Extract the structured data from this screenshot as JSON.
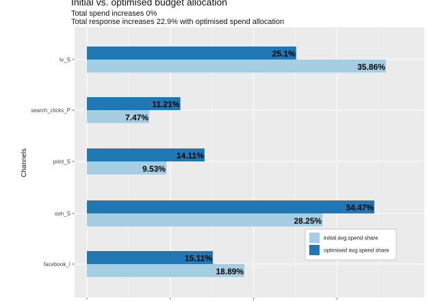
{
  "title": "Initial vs. optimised budget allocation",
  "subtitle_lines": [
    "Total spend increases 0%",
    "Total response increases 22.9% with optimised spend allocation"
  ],
  "chart_data": {
    "type": "bar",
    "orientation": "horizontal",
    "title": "Initial vs. optimised budget allocation",
    "ylabel": "Channels",
    "xlabel": "",
    "categories": [
      "tv_S",
      "search_clicks_P",
      "print_S",
      "ooh_S",
      "facebook_I"
    ],
    "series": [
      {
        "name": "initial avg.spend share",
        "color": "#a6cee3",
        "values": [
          35.86,
          7.47,
          9.53,
          28.25,
          18.89
        ],
        "labels": [
          "35.86%",
          "7.47%",
          "9.53%",
          "28.25%",
          "18.89%"
        ]
      },
      {
        "name": "optimised avg.spend share",
        "color": "#1f78b4",
        "values": [
          25.1,
          11.21,
          14.11,
          34.47,
          15.11
        ],
        "labels": [
          "25.1%",
          "11.21%",
          "14.11%",
          "34.47%",
          "15.11%"
        ]
      }
    ],
    "xlim": [
      0,
      38
    ],
    "grid": true,
    "panel_background": "#ebebeb",
    "legend_position": "bottom-right"
  }
}
